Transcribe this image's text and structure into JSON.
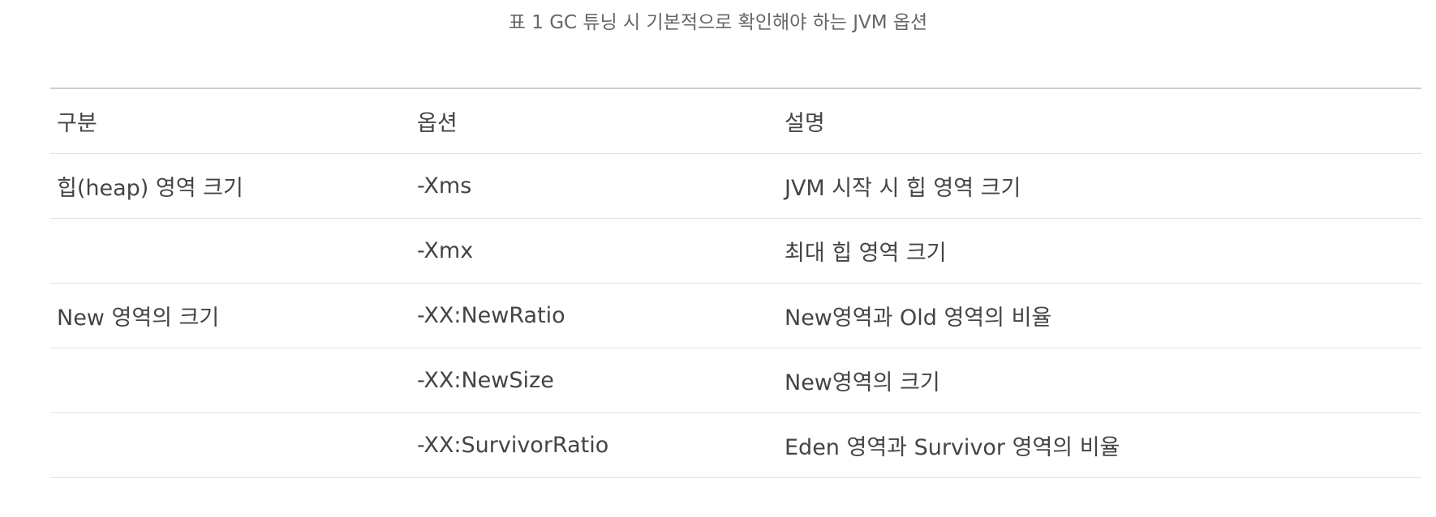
{
  "caption": "표 1 GC 튜닝 시 기본적으로 확인해야 하는 JVM 옵션",
  "table": {
    "headers": [
      "구분",
      "옵션",
      "설명"
    ],
    "rows": [
      [
        "힙(heap) 영역 크기",
        "-Xms",
        "JVM 시작 시 힙 영역 크기"
      ],
      [
        "",
        "-Xmx",
        "최대 힙 영역 크기"
      ],
      [
        "New 영역의 크기",
        "-XX:NewRatio",
        "New영역과 Old 영역의 비율"
      ],
      [
        "",
        "-XX:NewSize",
        "New영역의 크기"
      ],
      [
        "",
        "-XX:SurvivorRatio",
        "Eden 영역과 Survivor 영역의 비율"
      ]
    ]
  }
}
